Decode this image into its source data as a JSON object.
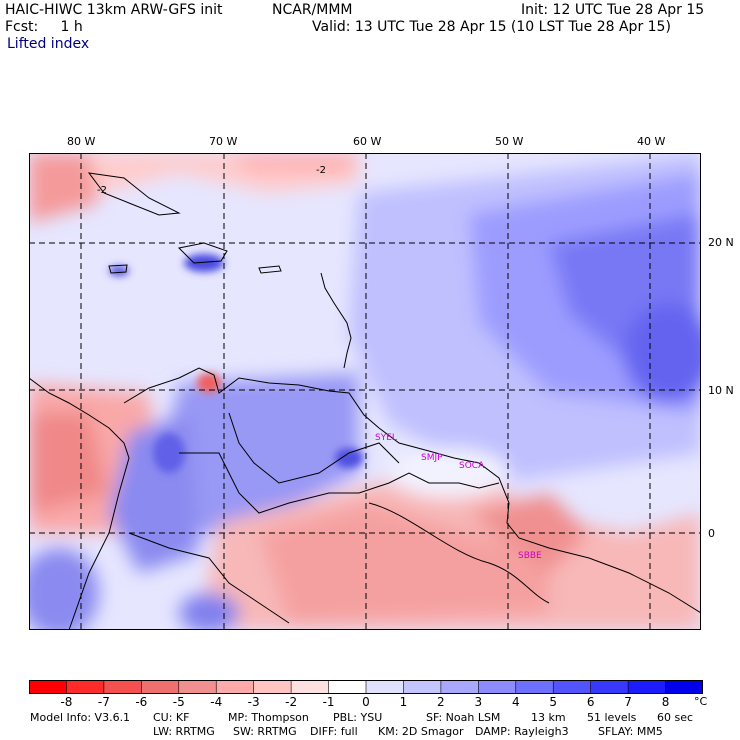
{
  "header": {
    "title": "HAIC-HIWC 13km ARW-GFS init",
    "org": "NCAR/MMM",
    "init": "Init: 12 UTC Tue 28 Apr 15",
    "fcst": "Fcst:     1 h",
    "valid": "Valid: 13 UTC Tue 28 Apr 15 (10 LST Tue 28 Apr 15)",
    "field": "Lifted index"
  },
  "map": {
    "lon_labels": [
      "80 W",
      "70 W",
      "60 W",
      "50 W",
      "40 W"
    ],
    "lat_labels": [
      "20 N",
      "10 N",
      "0"
    ],
    "contour_labels": [
      "-2",
      "-2"
    ],
    "station_labels": [
      "SYEL",
      "SMJP",
      "SOCA",
      "SBBE"
    ],
    "colors": {
      "station": "#cc00cc",
      "blue_strong": "#5a5af0",
      "blue_light": "#c8c8ff",
      "red_light": "#ffc8c8",
      "red_strong": "#f05a5a"
    }
  },
  "colorbar": {
    "ticks": [
      "-8",
      "-7",
      "-6",
      "-5",
      "-4",
      "-3",
      "-2",
      "-1",
      "0",
      "1",
      "2",
      "3",
      "4",
      "5",
      "6",
      "7",
      "8"
    ],
    "unit": "°C",
    "colors": [
      "#ff0000",
      "#ff2a2a",
      "#f55050",
      "#f07070",
      "#f09090",
      "#ffaaaa",
      "#ffc4c4",
      "#ffe0e0",
      "#ffffff",
      "#e0e0ff",
      "#c4c4ff",
      "#a8a8ff",
      "#8c8cff",
      "#7070ff",
      "#5454ff",
      "#3838ff",
      "#1c1cff",
      "#0000ee"
    ]
  },
  "model_info": {
    "line1": [
      "Model Info: V3.6.1",
      "CU: KF",
      "MP: Thompson",
      "PBL: YSU",
      "SF: Noah LSM",
      "13 km",
      "51 levels",
      "60 sec"
    ],
    "line2": [
      "LW: RRTMG",
      "SW: RRTMG",
      "DIFF: full",
      "KM: 2D Smagor",
      "DAMP: Rayleigh3",
      "SFLAY: MM5"
    ]
  }
}
